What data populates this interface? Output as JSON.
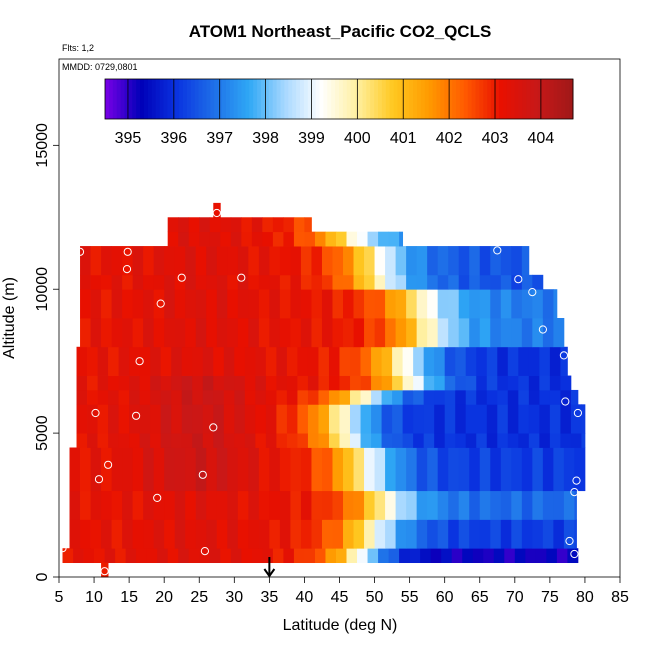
{
  "chart_data": {
    "type": "heatmap",
    "title": "ATOM1 Northeast_Pacific CO2_QCLS",
    "subtitle": "Flts: 1,2",
    "annotation": "MMDD: 0729,0801",
    "xlabel": "Latitude (deg N)",
    "ylabel": "Altitude (m)",
    "xlim": [
      5,
      85
    ],
    "ylim": [
      0,
      18000
    ],
    "x_ticks": [
      "5",
      "10",
      "15",
      "20",
      "25",
      "30",
      "35",
      "40",
      "45",
      "50",
      "55",
      "60",
      "65",
      "70",
      "75",
      "80",
      "85"
    ],
    "y_ticks": [
      "0",
      "5000",
      "10000",
      "15000"
    ],
    "x_tick_values": [
      5,
      10,
      15,
      20,
      25,
      30,
      35,
      40,
      45,
      50,
      55,
      60,
      65,
      70,
      75,
      80,
      85
    ],
    "y_tick_values": [
      0,
      5000,
      10000,
      15000
    ],
    "colorbar": {
      "min": 394.5,
      "max": 404.7,
      "labels": [
        "395",
        "396",
        "397",
        "398",
        "399",
        "400",
        "401",
        "402",
        "403",
        "404"
      ],
      "label_values": [
        395,
        396,
        397,
        398,
        399,
        400,
        401,
        402,
        403,
        404
      ],
      "colors": [
        "#7a00e6",
        "#0000b8",
        "#0a33e0",
        "#1e6ee8",
        "#2fa8f5",
        "#a8d8ff",
        "#ffffff",
        "#fff0a0",
        "#ffc820",
        "#ff9a00",
        "#ff5a00",
        "#e81000",
        "#c81818",
        "#a01818"
      ]
    },
    "latitude_marker": 35,
    "bands": [
      {
        "alt0": 500,
        "alt1": 1000,
        "lat0": 5.5,
        "lat1": 79.0,
        "mid": 48.0,
        "w": 14,
        "lo": 395.2
      },
      {
        "alt0": 1000,
        "alt1": 2000,
        "lat0": 6.5,
        "lat1": 78.8,
        "mid": 49.5,
        "w": 15,
        "lo": 396.2
      },
      {
        "alt0": 2000,
        "alt1": 3000,
        "lat0": 6.5,
        "lat1": 78.8,
        "mid": 51.0,
        "w": 15,
        "lo": 396.8
      },
      {
        "alt0": 3000,
        "alt1": 4500,
        "lat0": 6.5,
        "lat1": 80.0,
        "mid": 48.5,
        "w": 15,
        "lo": 396.2
      },
      {
        "alt0": 4500,
        "alt1": 5000,
        "lat0": 7.5,
        "lat1": 80.0,
        "mid": 46.0,
        "w": 14,
        "lo": 396.0
      },
      {
        "alt0": 5000,
        "alt1": 6000,
        "lat0": 7.5,
        "lat1": 80.0,
        "mid": 45.5,
        "w": 14,
        "lo": 396.0
      },
      {
        "alt0": 6000,
        "alt1": 6500,
        "lat0": 7.5,
        "lat1": 79.0,
        "mid": 48.5,
        "w": 15,
        "lo": 396.0
      },
      {
        "alt0": 6500,
        "alt1": 7000,
        "lat0": 7.5,
        "lat1": 78.0,
        "mid": 55.0,
        "w": 15,
        "lo": 396.0
      },
      {
        "alt0": 7000,
        "alt1": 8000,
        "lat0": 7.5,
        "lat1": 77.5,
        "mid": 54.0,
        "w": 15,
        "lo": 396.0
      },
      {
        "alt0": 8000,
        "alt1": 9000,
        "lat0": 8.0,
        "lat1": 77.0,
        "mid": 57.0,
        "w": 15,
        "lo": 397.0
      },
      {
        "alt0": 9000,
        "alt1": 10000,
        "lat0": 8.0,
        "lat1": 76.0,
        "mid": 56.0,
        "w": 16,
        "lo": 397.0
      },
      {
        "alt0": 10000,
        "alt1": 10500,
        "lat0": 8.0,
        "lat1": 74.0,
        "mid": 50.5,
        "w": 15,
        "lo": 396.5
      },
      {
        "alt0": 10500,
        "alt1": 11500,
        "lat0": 8.0,
        "lat1": 72.0,
        "mid": 50.0,
        "w": 15,
        "lo": 396.5
      },
      {
        "alt0": 11500,
        "alt1": 12000,
        "lat0": 20.5,
        "lat1": 54.0,
        "mid": 46.0,
        "w": 15,
        "lo": 397.0
      },
      {
        "alt0": 12000,
        "alt1": 12500,
        "lat0": 20.5,
        "lat1": 41.0,
        "mid": 46.0,
        "w": 15,
        "lo": 397.0
      },
      {
        "alt0": 12500,
        "alt1": 13000,
        "lat0": 27.0,
        "lat1": 28.0,
        "mid": 46.0,
        "w": 15,
        "lo": 397.0
      },
      {
        "alt0": 0,
        "alt1": 500,
        "lat0": 11.0,
        "lat1": 12.0,
        "mid": 48.0,
        "w": 15,
        "lo": 397.0
      }
    ],
    "points": [
      [
        5.5,
        1000
      ],
      [
        11.5,
        200
      ],
      [
        25.8,
        900
      ],
      [
        10.7,
        3400
      ],
      [
        12.0,
        3900
      ],
      [
        19.0,
        2750
      ],
      [
        25.5,
        3550
      ],
      [
        10.2,
        5700
      ],
      [
        16.0,
        5600
      ],
      [
        27.0,
        5200
      ],
      [
        16.5,
        7500
      ],
      [
        19.5,
        9500
      ],
      [
        22.5,
        10400
      ],
      [
        31.0,
        10400
      ],
      [
        8.0,
        11300
      ],
      [
        14.8,
        11300
      ],
      [
        14.7,
        10700
      ],
      [
        27.5,
        12650
      ],
      [
        67.5,
        11350
      ],
      [
        70.5,
        10350
      ],
      [
        72.5,
        9900
      ],
      [
        74.0,
        8600
      ],
      [
        77.0,
        7700
      ],
      [
        77.2,
        6100
      ],
      [
        79.0,
        5700
      ],
      [
        78.8,
        3350
      ],
      [
        78.5,
        2950
      ],
      [
        77.8,
        1250
      ],
      [
        78.5,
        800
      ]
    ],
    "grid": false,
    "legend_placement": "top"
  }
}
